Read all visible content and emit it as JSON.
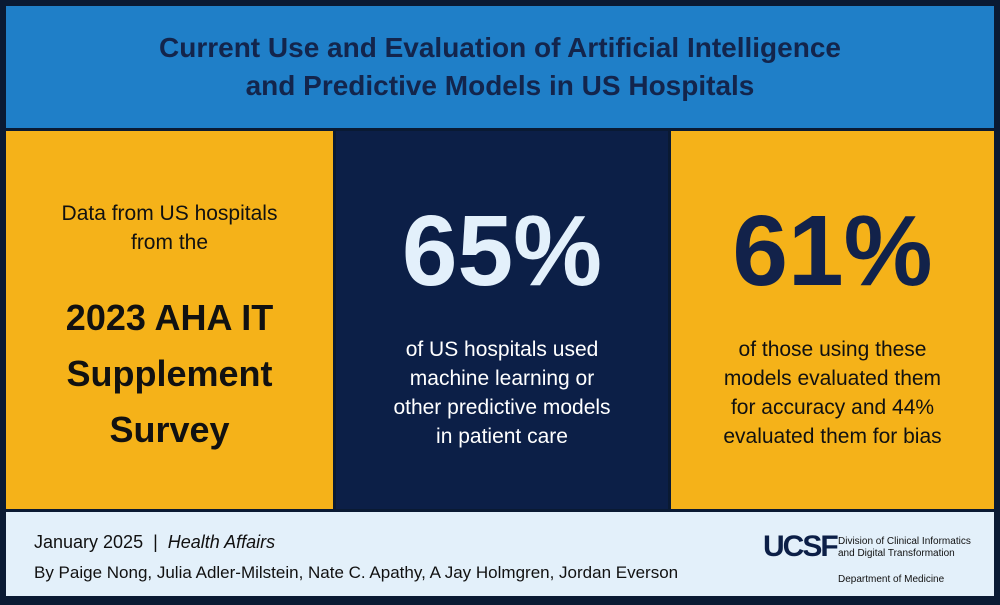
{
  "header": {
    "title_line1": "Current Use and Evaluation of Artificial Intelligence",
    "title_line2": "and Predictive Models in US Hospitals"
  },
  "panel_left": {
    "intro_lines": [
      "Data from US hospitals",
      "from the"
    ],
    "big_lines": [
      "2023 AHA IT",
      "Supplement",
      "Survey"
    ]
  },
  "panel_middle": {
    "stat": "65%",
    "desc_lines": [
      "of US hospitals used",
      "machine learning or",
      "other predictive models",
      "in patient care"
    ]
  },
  "panel_right": {
    "stat": "61%",
    "desc_lines": [
      "of those using these",
      "models evaluated them",
      "for accuracy and 44%",
      "evaluated them for bias"
    ]
  },
  "footer": {
    "date": "January 2025",
    "separator": "|",
    "journal": "Health Affairs",
    "authors": "By Paige Nong, Julia Adler-Milstein, Nate C. Apathy, A Jay Holmgren, Jordan Everson",
    "logo": {
      "mark": "UCSF",
      "division_lines": [
        "Division of Clinical Informatics",
        "and Digital Transformation"
      ],
      "department": "Department of Medicine"
    }
  },
  "colors": {
    "header_bg": "#1f7fc8",
    "title_text": "#13254c",
    "gold": "#f5b219",
    "navy": "#0c1f47",
    "footer_bg": "#e3f0fa"
  }
}
